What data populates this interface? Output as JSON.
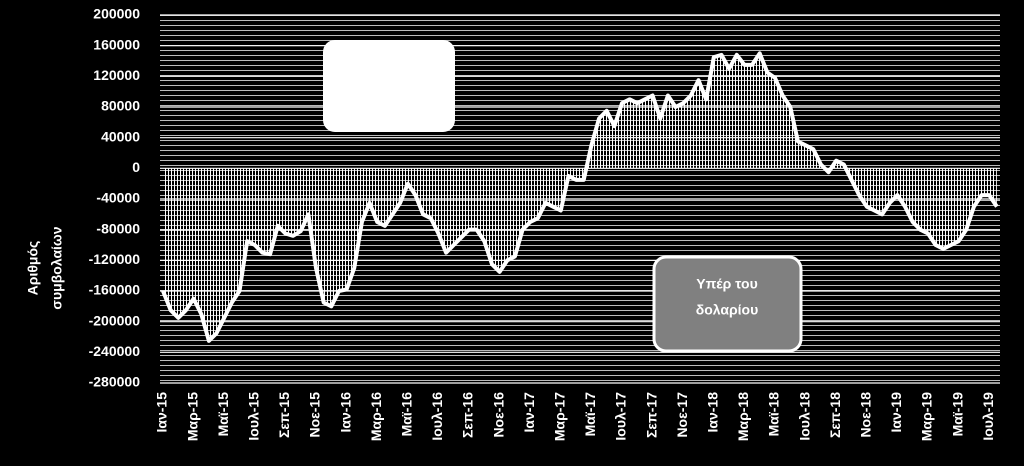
{
  "chart_data": {
    "type": "area-line",
    "y_label": [
      "Αριθμός",
      "συμβολαίων"
    ],
    "annotations": [
      [
        "Υπέρ του",
        "δολαρίου"
      ]
    ],
    "categories": [
      "Ιαν-15",
      null,
      null,
      null,
      "Μαρ-15",
      null,
      null,
      null,
      "Μαϊ-15",
      null,
      null,
      null,
      "Ιουλ-15",
      null,
      null,
      null,
      "Σεπ-15",
      null,
      null,
      null,
      "Νοε-15",
      null,
      null,
      null,
      "Ιαν-16",
      null,
      null,
      null,
      "Μαρ-16",
      null,
      null,
      null,
      "Μαϊ-16",
      null,
      null,
      null,
      "Ιουλ-16",
      null,
      null,
      null,
      "Σεπ-16",
      null,
      null,
      null,
      "Νοε-16",
      null,
      null,
      null,
      "Ιαν-17",
      null,
      null,
      null,
      "Μαρ-17",
      null,
      null,
      null,
      "Μαϊ-17",
      null,
      null,
      null,
      "Ιουλ-17",
      null,
      null,
      null,
      "Σεπ-17",
      null,
      null,
      null,
      "Νοε-17",
      null,
      null,
      null,
      "Ιαν-18",
      null,
      null,
      null,
      "Μαρ-18",
      null,
      null,
      null,
      "Μαϊ-18",
      null,
      null,
      null,
      "Ιουλ-18",
      null,
      null,
      null,
      "Σεπ-18",
      null,
      null,
      null,
      "Νοε-18",
      null,
      null,
      null,
      "Ιαν-19",
      null,
      null,
      null,
      "Μαρ-19",
      null,
      null,
      null,
      "Μαϊ-19",
      null,
      null,
      null,
      "Ιουλ-19",
      null
    ],
    "series": [
      {
        "color": "#ffffff",
        "values": [
          -160000,
          -185000,
          -195000,
          -185000,
          -170000,
          -190000,
          -225000,
          -215000,
          -195000,
          -175000,
          -160000,
          -95000,
          -100000,
          -110000,
          -112000,
          -75000,
          -85000,
          -88000,
          -82000,
          -60000,
          -130000,
          -175000,
          -180000,
          -160000,
          -158000,
          -130000,
          -70000,
          -45000,
          -70000,
          -75000,
          -60000,
          -45000,
          -20000,
          -35000,
          -60000,
          -65000,
          -85000,
          -110000,
          -100000,
          -90000,
          -80000,
          -80000,
          -95000,
          -125000,
          -135000,
          -120000,
          -115000,
          -80000,
          -70000,
          -65000,
          -45000,
          -50000,
          -55000,
          -10000,
          -15000,
          -15000,
          30000,
          65000,
          75000,
          55000,
          85000,
          90000,
          85000,
          90000,
          95000,
          65000,
          95000,
          80000,
          85000,
          95000,
          115000,
          90000,
          145000,
          148000,
          130000,
          148000,
          135000,
          135000,
          150000,
          125000,
          118000,
          95000,
          80000,
          35000,
          30000,
          25000,
          5000,
          -5000,
          10000,
          5000,
          -15000,
          -35000,
          -50000,
          -55000,
          -60000,
          -45000,
          -35000,
          -50000,
          -70000,
          -80000,
          -85000,
          -100000,
          -105000,
          -100000,
          -95000,
          -80000,
          -50000,
          -35000,
          -35000,
          -50000
        ]
      }
    ],
    "ylim": [
      -280000,
      200000
    ],
    "yticks": [
      -280000,
      -240000,
      -200000,
      -160000,
      -120000,
      -80000,
      -40000,
      0,
      40000,
      80000,
      120000,
      160000,
      200000
    ],
    "grid": true
  }
}
